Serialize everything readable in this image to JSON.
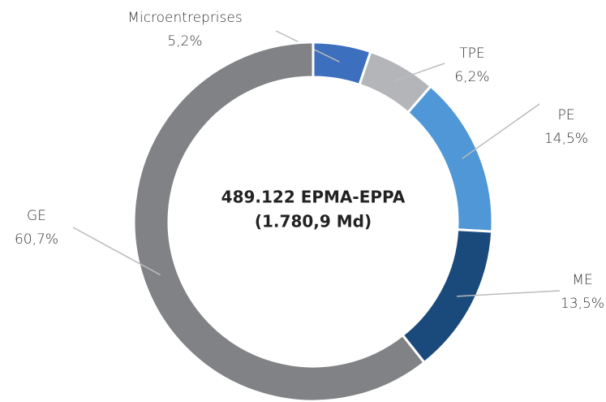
{
  "chart_data": {
    "type": "donut",
    "center_text": [
      "489.122 EPMA-EPPA",
      "(1.780,9 Md)"
    ],
    "categories": [
      "Microentreprises",
      "TPE",
      "PE",
      "ME",
      "GE"
    ],
    "values": [
      5.2,
      6.2,
      14.5,
      13.5,
      60.7
    ],
    "value_labels": [
      "5,2%",
      "6,2%",
      "14,5%",
      "13,5%",
      "60,7%"
    ],
    "colors": [
      "#3d6fbf",
      "#b4b5b8",
      "#4f97d6",
      "#1a4a7c",
      "#808285"
    ]
  }
}
